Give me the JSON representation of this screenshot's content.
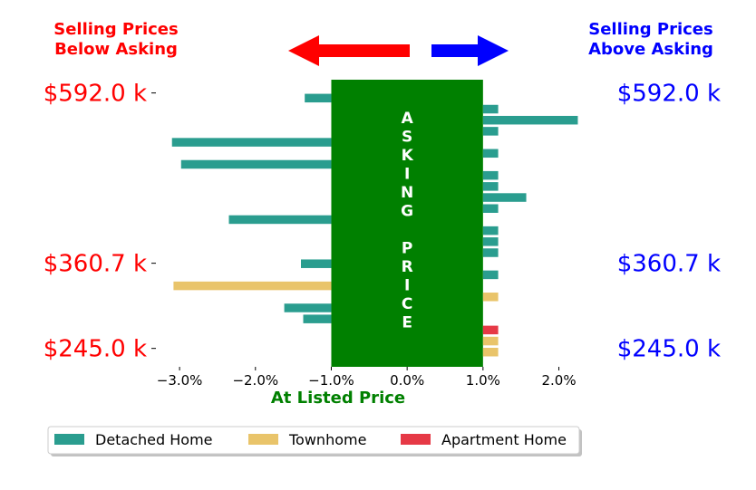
{
  "header": {
    "below_label_line1": "Selling Prices",
    "below_label_line2": "Below Asking",
    "above_label_line1": "Selling Prices",
    "above_label_line2": "Above Asking",
    "below_color": "#ff0000",
    "above_color": "#0000ff"
  },
  "band": {
    "letters": [
      "A",
      "S",
      "K",
      "I",
      "N",
      "G",
      "",
      "P",
      "R",
      "I",
      "C",
      "E"
    ],
    "color": "#008000"
  },
  "chart_data": {
    "type": "bar",
    "orientation": "horizontal",
    "xlabel": "At Listed Price",
    "xlim": [
      -3.3,
      2.4
    ],
    "x_ticks": [
      -3.0,
      -2.0,
      -1.0,
      0.0,
      1.0,
      2.0
    ],
    "x_tick_labels": [
      "−3.0%",
      "−2.0%",
      "−1.0%",
      "0.0%",
      "1.0%",
      "2.0%"
    ],
    "ylim": [
      220,
      610
    ],
    "y_ticks": [
      592.0,
      360.7,
      245.0
    ],
    "y_tick_labels": [
      "$592.0 k",
      "$360.7 k",
      "$245.0 k"
    ],
    "bars": [
      {
        "price": 585,
        "pct": -1.35,
        "type": "Detached Home"
      },
      {
        "price": 570,
        "pct": 1.2,
        "type": "Detached Home"
      },
      {
        "price": 555,
        "pct": 2.25,
        "type": "Detached Home"
      },
      {
        "price": 540,
        "pct": 1.2,
        "type": "Detached Home"
      },
      {
        "price": 525,
        "pct": -3.1,
        "type": "Detached Home"
      },
      {
        "price": 510,
        "pct": 1.2,
        "type": "Detached Home"
      },
      {
        "price": 495,
        "pct": -2.98,
        "type": "Detached Home"
      },
      {
        "price": 480,
        "pct": 1.2,
        "type": "Detached Home"
      },
      {
        "price": 465,
        "pct": 1.2,
        "type": "Detached Home"
      },
      {
        "price": 450,
        "pct": 1.57,
        "type": "Detached Home"
      },
      {
        "price": 435,
        "pct": 1.2,
        "type": "Detached Home"
      },
      {
        "price": 420,
        "pct": -2.35,
        "type": "Detached Home"
      },
      {
        "price": 405,
        "pct": 1.2,
        "type": "Detached Home"
      },
      {
        "price": 390,
        "pct": 1.2,
        "type": "Detached Home"
      },
      {
        "price": 375,
        "pct": 1.2,
        "type": "Detached Home"
      },
      {
        "price": 360,
        "pct": -1.4,
        "type": "Detached Home"
      },
      {
        "price": 345,
        "pct": 1.2,
        "type": "Detached Home"
      },
      {
        "price": 330,
        "pct": -3.08,
        "type": "Townhome"
      },
      {
        "price": 315,
        "pct": 1.2,
        "type": "Townhome"
      },
      {
        "price": 300,
        "pct": -1.62,
        "type": "Detached Home"
      },
      {
        "price": 285,
        "pct": -1.37,
        "type": "Detached Home"
      },
      {
        "price": 270,
        "pct": 1.2,
        "type": "Apartment Home"
      },
      {
        "price": 255,
        "pct": 1.2,
        "type": "Townhome"
      },
      {
        "price": 240,
        "pct": 1.2,
        "type": "Townhome"
      }
    ],
    "legend": {
      "placement": "bottom",
      "entries": [
        {
          "name": "Detached Home",
          "color": "#2a9d8f"
        },
        {
          "name": "Townhome",
          "color": "#e9c46a"
        },
        {
          "name": "Apartment Home",
          "color": "#e63946"
        }
      ]
    },
    "asking_band": [
      -1.0,
      1.0
    ]
  }
}
